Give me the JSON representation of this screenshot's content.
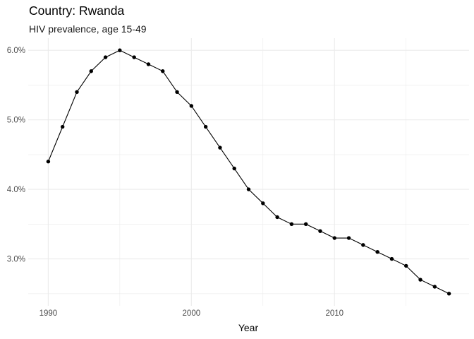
{
  "chart_data": {
    "type": "line",
    "title": "Country: Rwanda",
    "subtitle": "HIV prevalence, age 15-49",
    "xlabel": "Year",
    "ylabel": "",
    "x": [
      1990,
      1991,
      1992,
      1993,
      1994,
      1995,
      1996,
      1997,
      1998,
      1999,
      2000,
      2001,
      2002,
      2003,
      2004,
      2005,
      2006,
      2007,
      2008,
      2009,
      2010,
      2011,
      2012,
      2013,
      2014,
      2015,
      2016,
      2017,
      2018
    ],
    "series": [
      {
        "values": [
          4.4,
          4.9,
          5.4,
          5.7,
          5.9,
          6.0,
          5.9,
          5.8,
          5.7,
          5.4,
          5.2,
          4.9,
          4.6,
          4.3,
          4.0,
          3.8,
          3.6,
          3.5,
          3.5,
          3.4,
          3.3,
          3.3,
          3.2,
          3.1,
          3.0,
          2.9,
          2.7,
          2.6,
          2.5
        ],
        "color": "#000000"
      }
    ],
    "x_ticks": [
      1990,
      2000,
      2010
    ],
    "x_tick_labels": [
      "1990",
      "2000",
      "2010"
    ],
    "y_ticks": [
      3.0,
      4.0,
      5.0,
      6.0
    ],
    "y_tick_labels": [
      "3.0%",
      "4.0%",
      "5.0%",
      "6.0%"
    ],
    "xlim": [
      1988.6,
      2019.4
    ],
    "ylim": [
      2.325,
      6.175
    ],
    "grid": true,
    "theme": "minimal",
    "grid_color": "#ebebeb",
    "line_color": "#000000",
    "point_color": "#000000"
  }
}
